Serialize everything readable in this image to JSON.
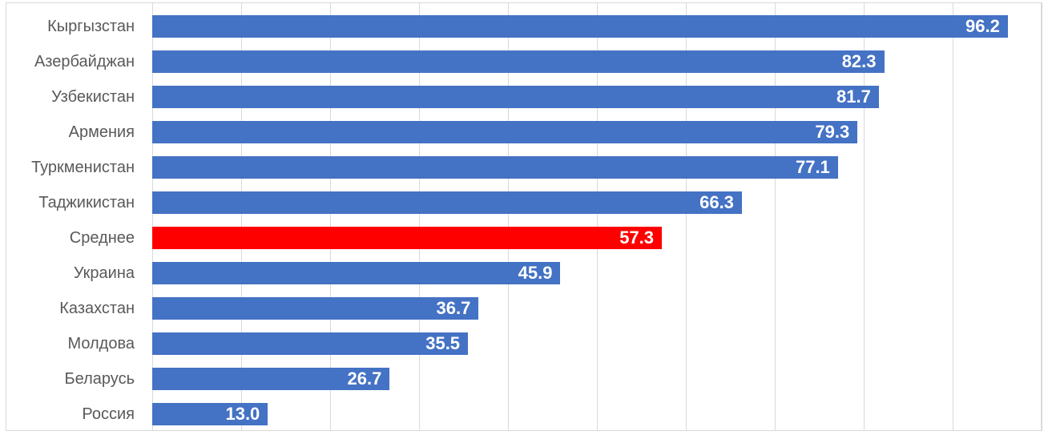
{
  "chart_data": {
    "type": "bar",
    "orientation": "horizontal",
    "title": "",
    "xlabel": "",
    "ylabel": "",
    "categories": [
      "Кыргызстан",
      "Азербайджан",
      "Узбекистан",
      "Армения",
      "Туркменистан",
      "Таджикистан",
      "Среднее",
      "Украина",
      "Казахстан",
      "Молдова",
      "Беларусь",
      "Россия"
    ],
    "values": [
      96.2,
      82.3,
      81.7,
      79.3,
      77.1,
      66.3,
      57.3,
      45.9,
      36.7,
      35.5,
      26.7,
      13.0
    ],
    "value_labels": [
      "96.2",
      "82.3",
      "81.7",
      "79.3",
      "77.1",
      "66.3",
      "57.3",
      "45.9",
      "36.7",
      "35.5",
      "26.7",
      "13.0"
    ],
    "highlight_index": 6,
    "xlim": [
      0,
      100
    ],
    "grid_interval": 10,
    "grid": true,
    "legend": false
  },
  "colors": {
    "bar": "#4472C4",
    "highlight": "#FF0000",
    "value_text": "#FFFFFF",
    "category_text": "#595959",
    "gridline": "#D9D9D9",
    "frame_border": "#D9D9D9",
    "background": "#FFFFFF"
  }
}
